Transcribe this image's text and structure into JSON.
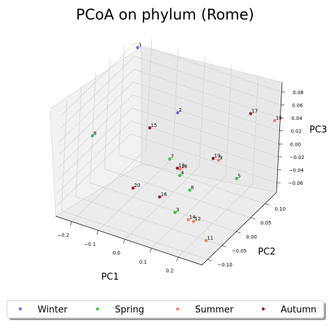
{
  "chart_data": {
    "type": "scatter",
    "title": "PCoA on phylum (Rome)",
    "xlabel": "PC1",
    "ylabel": "PC2",
    "zlabel": "PC3",
    "x_ticks": [
      "−0.2",
      "−0.1",
      "0.0",
      "0.1",
      "0.2"
    ],
    "y_ticks": [
      "−0.10",
      "−0.05",
      "0.00",
      "0.05",
      "0.10"
    ],
    "z_ticks": [
      "−0.06",
      "−0.04",
      "−0.02",
      "0.00",
      "0.02",
      "0.04",
      "0.06",
      "0.08"
    ],
    "legend_position": "bottom",
    "grid": true,
    "series": [
      {
        "name": "Winter",
        "color": "#7b68ee",
        "points": [
          {
            "label": "1",
            "pc1": -0.17,
            "pc2": 0.06,
            "pc3": 0.12
          },
          {
            "label": "2",
            "pc1": -0.03,
            "pc2": 0.08,
            "pc3": 0.03
          }
        ]
      },
      {
        "name": "Spring",
        "color": "#2ecc40",
        "points": [
          {
            "label": "8",
            "pc1": -0.22,
            "pc2": -0.04,
            "pc3": 0.02
          },
          {
            "label": "7",
            "pc1": 0.01,
            "pc2": 0.02,
            "pc3": -0.01
          },
          {
            "label": "4",
            "pc1": 0.05,
            "pc2": 0.02,
            "pc3": -0.03
          },
          {
            "label": "5",
            "pc1": 0.2,
            "pc2": 0.08,
            "pc3": -0.04
          },
          {
            "label": "6",
            "pc1": 0.12,
            "pc2": -0.01,
            "pc3": -0.03
          },
          {
            "label": "3",
            "pc1": 0.09,
            "pc2": -0.03,
            "pc3": -0.06
          }
        ]
      },
      {
        "name": "Summer",
        "color": "#fa8060",
        "points": [
          {
            "label": "10",
            "pc1": 0.3,
            "pc2": 0.11,
            "pc3": 0.05
          },
          {
            "label": "18",
            "pc1": 0.05,
            "pc2": 0.02,
            "pc3": -0.02
          },
          {
            "label": "9",
            "pc1": 0.15,
            "pc2": 0.06,
            "pc3": -0.01
          },
          {
            "label": "14",
            "pc1": 0.13,
            "pc2": -0.02,
            "pc3": -0.07
          },
          {
            "label": "12",
            "pc1": 0.15,
            "pc2": -0.02,
            "pc3": -0.07
          },
          {
            "label": "11",
            "pc1": 0.24,
            "pc2": -0.06,
            "pc3": -0.07
          }
        ]
      },
      {
        "name": "Autumn",
        "color": "#a0202a",
        "points": [
          {
            "label": "15",
            "pc1": -0.1,
            "pc2": 0.05,
            "pc3": 0.01
          },
          {
            "label": "19",
            "pc1": 0.13,
            "pc2": 0.06,
            "pc3": -0.01
          },
          {
            "label": "17",
            "pc1": 0.23,
            "pc2": 0.09,
            "pc3": 0.06
          },
          {
            "label": "13",
            "pc1": 0.04,
            "pc2": 0.02,
            "pc3": -0.02
          },
          {
            "label": "20",
            "pc1": -0.08,
            "pc2": -0.02,
            "pc3": -0.05
          },
          {
            "label": "16",
            "pc1": 0.02,
            "pc2": -0.02,
            "pc3": -0.05
          }
        ]
      }
    ]
  }
}
